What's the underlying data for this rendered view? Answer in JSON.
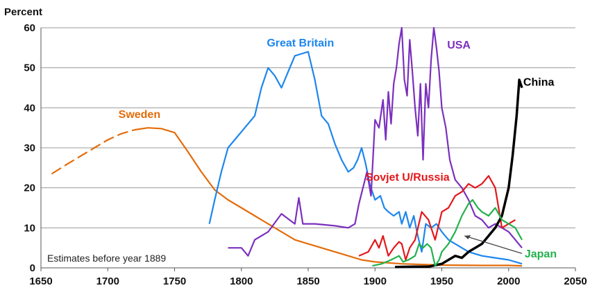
{
  "chart_data": {
    "type": "line",
    "ylabel": "Percent",
    "xlim": [
      1650,
      2050
    ],
    "ylim": [
      0,
      60
    ],
    "x_ticks": [
      "1650",
      "1700",
      "1750",
      "1800",
      "1850",
      "1900",
      "1950",
      "2000",
      "2050"
    ],
    "y_ticks": [
      "0",
      "10",
      "20",
      "30",
      "40",
      "50",
      "60"
    ],
    "grid": "horizontal",
    "annotation": "Estimates before year 1889",
    "series": [
      {
        "name": "Sweden",
        "color": "#e46c0a",
        "dashed_before": 1720,
        "points": [
          [
            1658,
            23.5
          ],
          [
            1670,
            26
          ],
          [
            1680,
            28
          ],
          [
            1690,
            30
          ],
          [
            1700,
            32
          ],
          [
            1710,
            33.5
          ],
          [
            1720,
            34.5
          ],
          [
            1730,
            35
          ],
          [
            1740,
            34.8
          ],
          [
            1750,
            33.8
          ],
          [
            1760,
            29
          ],
          [
            1770,
            24
          ],
          [
            1780,
            19.5
          ],
          [
            1790,
            17
          ],
          [
            1800,
            15
          ],
          [
            1810,
            13
          ],
          [
            1820,
            11
          ],
          [
            1830,
            9
          ],
          [
            1840,
            7
          ],
          [
            1850,
            6
          ],
          [
            1860,
            5
          ],
          [
            1870,
            4
          ],
          [
            1880,
            3
          ],
          [
            1890,
            2
          ],
          [
            1900,
            1.5
          ],
          [
            1920,
            1
          ],
          [
            1950,
            0.7
          ],
          [
            1980,
            0.6
          ],
          [
            2000,
            0.6
          ],
          [
            2010,
            0.5
          ]
        ]
      },
      {
        "name": "Great Britain",
        "color": "#1c86ee",
        "points": [
          [
            1776,
            11
          ],
          [
            1780,
            17
          ],
          [
            1785,
            24
          ],
          [
            1790,
            30
          ],
          [
            1795,
            32
          ],
          [
            1800,
            34
          ],
          [
            1810,
            38
          ],
          [
            1815,
            45
          ],
          [
            1820,
            50
          ],
          [
            1825,
            48
          ],
          [
            1830,
            45
          ],
          [
            1835,
            49
          ],
          [
            1840,
            53
          ],
          [
            1845,
            53.5
          ],
          [
            1850,
            54
          ],
          [
            1855,
            47
          ],
          [
            1860,
            38
          ],
          [
            1865,
            36
          ],
          [
            1870,
            31
          ],
          [
            1875,
            27
          ],
          [
            1880,
            24
          ],
          [
            1884,
            25
          ],
          [
            1887,
            27
          ],
          [
            1890,
            30
          ],
          [
            1893,
            26
          ],
          [
            1896,
            21
          ],
          [
            1900,
            17
          ],
          [
            1904,
            18
          ],
          [
            1907,
            15
          ],
          [
            1910,
            14
          ],
          [
            1914,
            13
          ],
          [
            1918,
            14
          ],
          [
            1920,
            11
          ],
          [
            1923,
            14
          ],
          [
            1926,
            10
          ],
          [
            1929,
            13
          ],
          [
            1932,
            8
          ],
          [
            1935,
            4
          ],
          [
            1938,
            11
          ],
          [
            1942,
            10
          ],
          [
            1946,
            11
          ],
          [
            1950,
            9
          ],
          [
            1955,
            7
          ],
          [
            1960,
            6
          ],
          [
            1965,
            5
          ],
          [
            1970,
            4
          ],
          [
            1975,
            3.5
          ],
          [
            1980,
            3
          ],
          [
            1990,
            2.5
          ],
          [
            2000,
            2
          ],
          [
            2010,
            1
          ]
        ]
      },
      {
        "name": "USA",
        "color": "#7b2fbe",
        "points": [
          [
            1790,
            5
          ],
          [
            1800,
            5
          ],
          [
            1805,
            3
          ],
          [
            1810,
            7
          ],
          [
            1820,
            9
          ],
          [
            1830,
            13.5
          ],
          [
            1840,
            11
          ],
          [
            1843,
            17.5
          ],
          [
            1846,
            11
          ],
          [
            1855,
            11
          ],
          [
            1870,
            10.5
          ],
          [
            1880,
            10
          ],
          [
            1885,
            11
          ],
          [
            1888,
            16
          ],
          [
            1891,
            20
          ],
          [
            1894,
            24
          ],
          [
            1897,
            18
          ],
          [
            1900,
            37
          ],
          [
            1903,
            35
          ],
          [
            1906,
            42
          ],
          [
            1908,
            32
          ],
          [
            1910,
            44
          ],
          [
            1912,
            36
          ],
          [
            1914,
            46
          ],
          [
            1916,
            50
          ],
          [
            1918,
            56
          ],
          [
            1920,
            60
          ],
          [
            1922,
            47
          ],
          [
            1924,
            43
          ],
          [
            1926,
            57
          ],
          [
            1928,
            49
          ],
          [
            1930,
            40
          ],
          [
            1932,
            33
          ],
          [
            1934,
            46
          ],
          [
            1936,
            27
          ],
          [
            1938,
            46
          ],
          [
            1940,
            40
          ],
          [
            1942,
            52
          ],
          [
            1944,
            60
          ],
          [
            1946,
            55
          ],
          [
            1948,
            49
          ],
          [
            1950,
            40
          ],
          [
            1953,
            35
          ],
          [
            1956,
            27
          ],
          [
            1960,
            22
          ],
          [
            1965,
            20
          ],
          [
            1970,
            17
          ],
          [
            1975,
            13
          ],
          [
            1980,
            12
          ],
          [
            1985,
            10
          ],
          [
            1990,
            11
          ],
          [
            1995,
            10
          ],
          [
            2000,
            9
          ],
          [
            2005,
            7
          ],
          [
            2010,
            5
          ]
        ]
      },
      {
        "name": "Sovjet U/Russia",
        "color": "#e3171b",
        "points": [
          [
            1888,
            3
          ],
          [
            1895,
            4
          ],
          [
            1900,
            7
          ],
          [
            1903,
            5
          ],
          [
            1906,
            8
          ],
          [
            1910,
            3
          ],
          [
            1914,
            5
          ],
          [
            1918,
            6.5
          ],
          [
            1920,
            6
          ],
          [
            1923,
            2
          ],
          [
            1926,
            5
          ],
          [
            1930,
            7
          ],
          [
            1935,
            14
          ],
          [
            1940,
            12
          ],
          [
            1945,
            7
          ],
          [
            1950,
            14
          ],
          [
            1955,
            15
          ],
          [
            1960,
            18
          ],
          [
            1965,
            19
          ],
          [
            1970,
            21
          ],
          [
            1975,
            20
          ],
          [
            1980,
            21
          ],
          [
            1985,
            23
          ],
          [
            1990,
            20
          ],
          [
            1995,
            10
          ],
          [
            2000,
            11
          ],
          [
            2005,
            12
          ]
        ]
      },
      {
        "name": "China",
        "color": "#000000",
        "points": [
          [
            1915,
            0.2
          ],
          [
            1930,
            0.3
          ],
          [
            1940,
            0.3
          ],
          [
            1950,
            1
          ],
          [
            1955,
            2
          ],
          [
            1960,
            3
          ],
          [
            1965,
            2.5
          ],
          [
            1970,
            4
          ],
          [
            1975,
            5
          ],
          [
            1980,
            6
          ],
          [
            1985,
            8
          ],
          [
            1990,
            10
          ],
          [
            1995,
            13
          ],
          [
            2000,
            20
          ],
          [
            2003,
            28
          ],
          [
            2006,
            38
          ],
          [
            2008,
            47
          ],
          [
            2010,
            45
          ]
        ]
      },
      {
        "name": "Japan",
        "color": "#22b14c",
        "points": [
          [
            1898,
            0.5
          ],
          [
            1905,
            1
          ],
          [
            1912,
            2
          ],
          [
            1918,
            3
          ],
          [
            1921,
            1.5
          ],
          [
            1925,
            2
          ],
          [
            1930,
            3
          ],
          [
            1933,
            6
          ],
          [
            1936,
            5
          ],
          [
            1939,
            6
          ],
          [
            1942,
            5
          ],
          [
            1945,
            0.5
          ],
          [
            1948,
            2
          ],
          [
            1950,
            4
          ],
          [
            1955,
            6
          ],
          [
            1960,
            9
          ],
          [
            1965,
            13
          ],
          [
            1970,
            16
          ],
          [
            1973,
            17
          ],
          [
            1977,
            15
          ],
          [
            1980,
            14
          ],
          [
            1985,
            13
          ],
          [
            1990,
            15
          ],
          [
            1995,
            12
          ],
          [
            2000,
            11
          ],
          [
            2005,
            10
          ],
          [
            2010,
            7
          ]
        ]
      }
    ]
  }
}
